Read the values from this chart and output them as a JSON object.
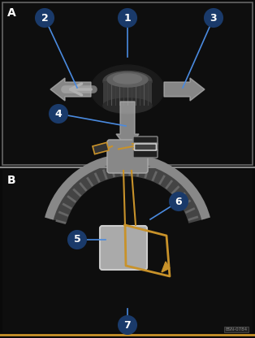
{
  "bg_color": "#0a0a0a",
  "panel_a_bg": "#111111",
  "panel_b_bg": "#0d0d0d",
  "label_bg": "#1a3a6a",
  "label_border": "#4a8adf",
  "label_text": "#ffffff",
  "arrow_color": "#b0b0b0",
  "gold_color": "#c8922a",
  "knob_color": "#555555",
  "car_color": "#cccccc",
  "separator_color": "#888888",
  "watermark": "BSN-0784",
  "panel_a_label": "A",
  "panel_b_label": "B",
  "callouts": [
    "1",
    "2",
    "3",
    "4",
    "5",
    "6",
    "7"
  ]
}
